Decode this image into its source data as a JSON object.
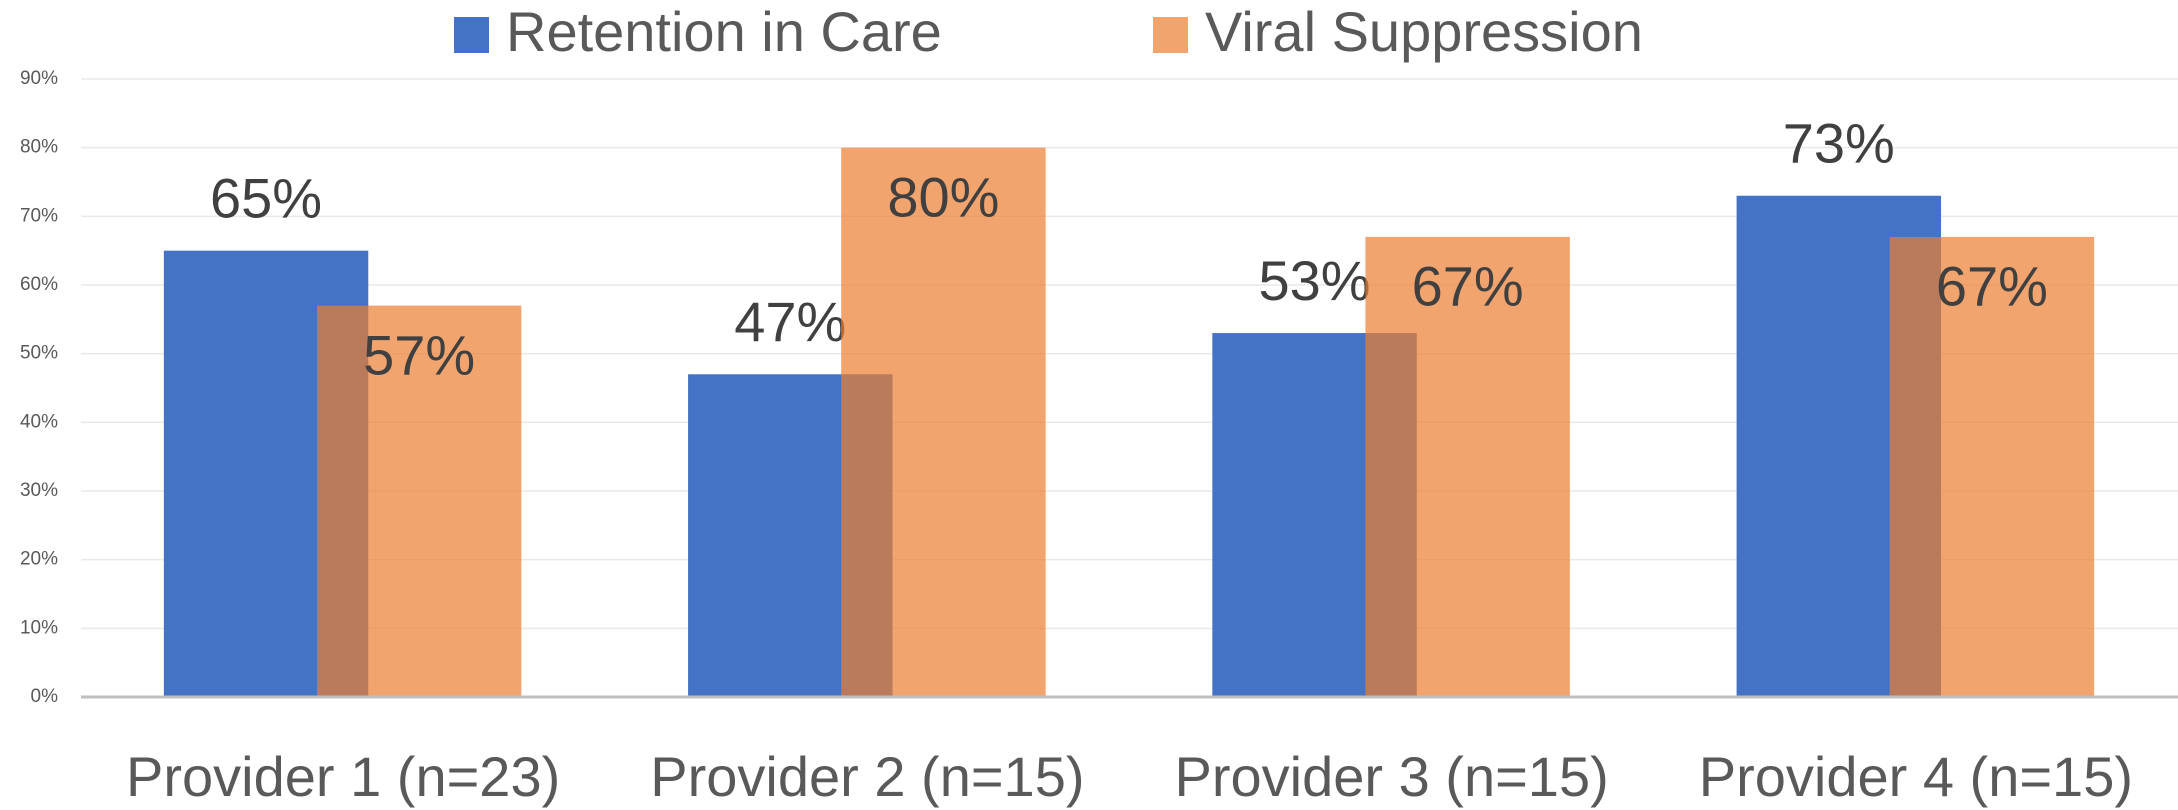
{
  "chart_data": {
    "type": "bar",
    "categories": [
      "Provider 1 (n=23)",
      "Provider 2 (n=15)",
      "Provider 3 (n=15)",
      "Provider 4 (n=15)"
    ],
    "series": [
      {
        "name": "Retention in Care",
        "color": "#4472c4",
        "values": [
          65,
          47,
          53,
          73
        ],
        "value_labels": [
          "65%",
          "47%",
          "53%",
          "73%"
        ]
      },
      {
        "name": "Viral Suppression",
        "color": "#ed7d31",
        "values": [
          57,
          80,
          67,
          67
        ],
        "value_labels": [
          "57%",
          "80%",
          "67%",
          "67%"
        ]
      }
    ],
    "ylim": [
      0,
      90
    ],
    "yticks": [
      {
        "value": 0,
        "label": "0%"
      },
      {
        "value": 10,
        "label": "10%"
      },
      {
        "value": 20,
        "label": "20%"
      },
      {
        "value": 30,
        "label": "30%"
      },
      {
        "value": 40,
        "label": "40%"
      },
      {
        "value": 50,
        "label": "50%"
      },
      {
        "value": 60,
        "label": "60%"
      },
      {
        "value": 70,
        "label": "70%"
      },
      {
        "value": 80,
        "label": "80%"
      },
      {
        "value": 90,
        "label": "90%"
      }
    ],
    "grid": true,
    "legend": "top"
  }
}
